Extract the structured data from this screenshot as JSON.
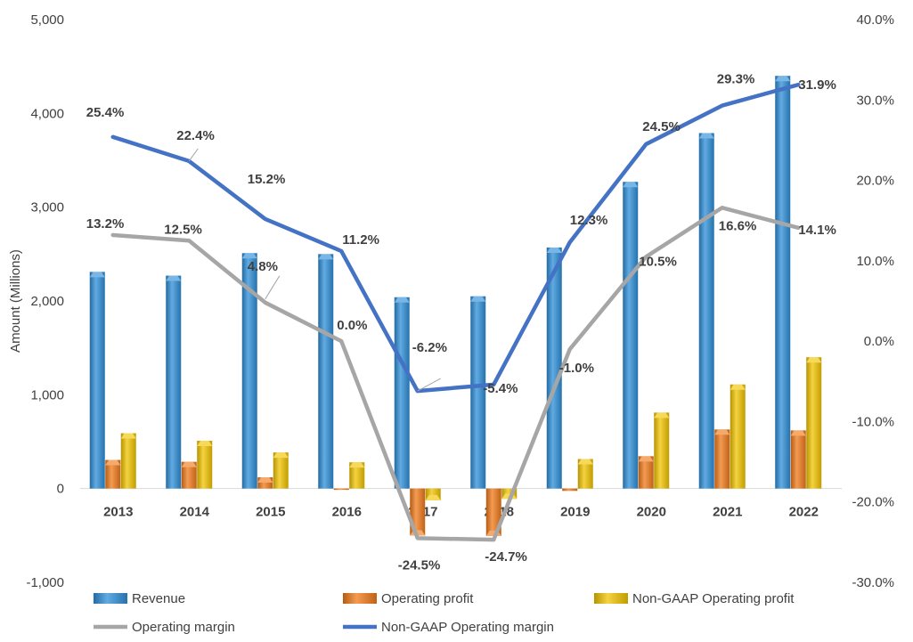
{
  "chart_data": {
    "type": "bar",
    "title": "",
    "ylabel": "Amount (Millions)",
    "categories": [
      "2013",
      "2014",
      "2015",
      "2016",
      "2017",
      "2018",
      "2019",
      "2020",
      "2021",
      "2022"
    ],
    "y_left": {
      "min": -1000,
      "max": 5000,
      "step": 1000,
      "tick_labels": [
        "-1,000",
        "0",
        "1,000",
        "2,000",
        "3,000",
        "4,000",
        "5,000"
      ]
    },
    "y_right": {
      "min": -30,
      "max": 40,
      "step": 10,
      "tick_labels": [
        "-30.0%",
        "-20.0%",
        "-10.0%",
        "0.0%",
        "10.0%",
        "20.0%",
        "30.0%",
        "40.0%"
      ]
    },
    "bar_series": [
      {
        "name": "Revenue",
        "color": "#2E8FD8",
        "values": [
          2310,
          2270,
          2510,
          2500,
          2040,
          2050,
          2570,
          3270,
          3790,
          4400
        ]
      },
      {
        "name": "Operating profit",
        "color": "#F07A1A",
        "values": [
          305,
          285,
          120,
          0,
          -500,
          -505,
          -25,
          345,
          630,
          620
        ]
      },
      {
        "name": "Non-GAAP Operating profit",
        "color": "#F2C400",
        "values": [
          590,
          510,
          385,
          280,
          -125,
          -110,
          315,
          810,
          1110,
          1400
        ]
      }
    ],
    "line_series": [
      {
        "name": "Operating margin",
        "color": "#A6A6A6",
        "values": [
          13.2,
          12.5,
          4.8,
          0.0,
          -24.5,
          -24.7,
          -1.0,
          10.5,
          16.6,
          14.1
        ],
        "labels": [
          "13.2%",
          "12.5%",
          "4.8%",
          "0.0%",
          "-24.5%",
          "-24.7%",
          "-1.0%",
          "10.5%",
          "16.6%",
          "14.1%"
        ]
      },
      {
        "name": "Non-GAAP Operating margin",
        "color": "#4472C4",
        "values": [
          25.4,
          22.4,
          15.2,
          11.2,
          -6.2,
          -5.4,
          12.3,
          24.5,
          29.3,
          31.9
        ],
        "labels": [
          "25.4%",
          "22.4%",
          "15.2%",
          "11.2%",
          "-6.2%",
          "-5.4%",
          "12.3%",
          "24.5%",
          "29.3%",
          "31.9%"
        ]
      }
    ],
    "grid": false,
    "legend_position": "bottom"
  }
}
